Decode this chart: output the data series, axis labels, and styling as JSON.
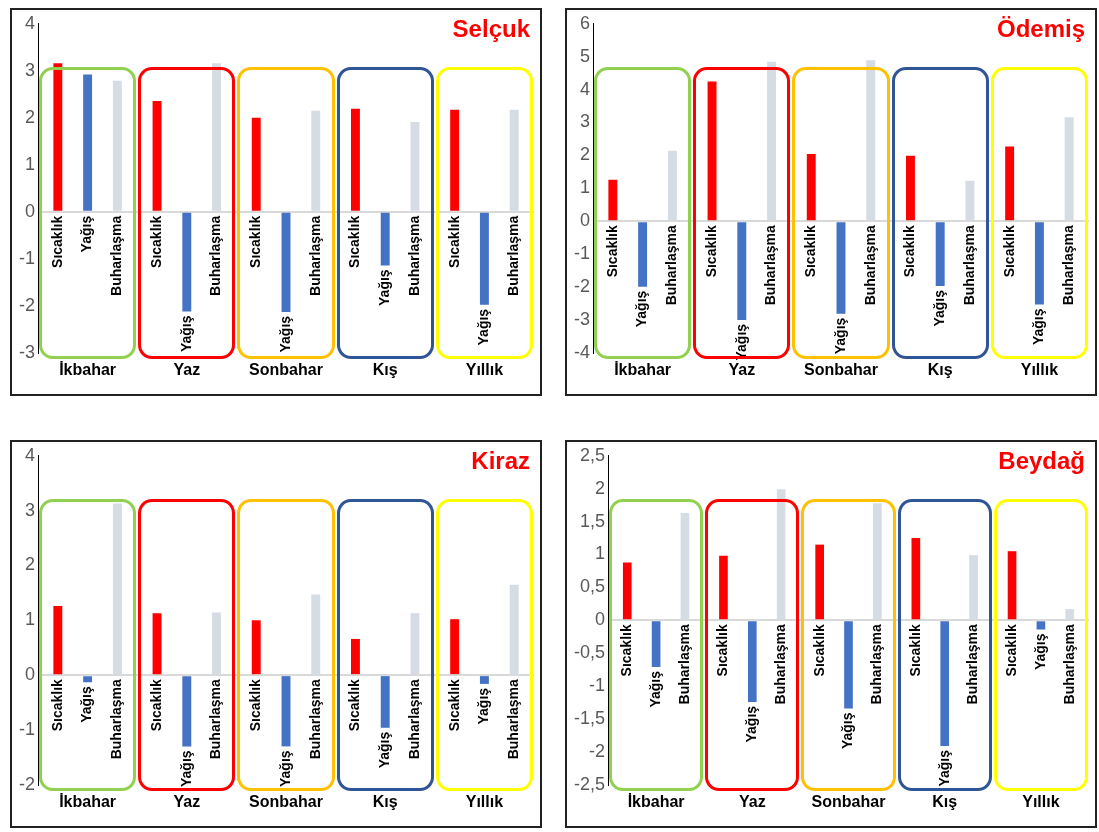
{
  "chart_data": [
    {
      "type": "bar",
      "title": "Selçuk",
      "categories": [
        "İkbahar",
        "Yaz",
        "Sonbahar",
        "Kış",
        "Yıllık"
      ],
      "series": [
        {
          "name": "Sıcaklık",
          "color": "#ff0000",
          "values": [
            3.16,
            2.36,
            2.0,
            2.19,
            2.17
          ]
        },
        {
          "name": "Yağış",
          "color": "#4472c4",
          "values": [
            2.92,
            -2.12,
            -2.13,
            -1.14,
            -1.98
          ]
        },
        {
          "name": "Buharlaşma",
          "color": "#d6dce4",
          "values": [
            2.79,
            3.16,
            2.15,
            1.91,
            2.17
          ]
        }
      ],
      "ylim": [
        -3,
        4
      ],
      "yticks": [
        -3,
        -2,
        -1,
        0,
        1,
        2,
        3,
        4
      ]
    },
    {
      "type": "bar",
      "title": "Ödemiş",
      "categories": [
        "İkbahar",
        "Yaz",
        "Sonbahar",
        "Kış",
        "Yıllık"
      ],
      "series": [
        {
          "name": "Sıcaklık",
          "color": "#ff0000",
          "values": [
            1.26,
            4.25,
            2.04,
            1.99,
            2.27
          ]
        },
        {
          "name": "Yağış",
          "color": "#4472c4",
          "values": [
            -1.99,
            -3.0,
            -2.81,
            -1.97,
            -2.53
          ]
        },
        {
          "name": "Buharlaşma",
          "color": "#d6dce4",
          "values": [
            2.14,
            4.85,
            4.89,
            1.23,
            3.16
          ]
        }
      ],
      "ylim": [
        -4,
        6
      ],
      "yticks": [
        -4,
        -3,
        -2,
        -1,
        0,
        1,
        2,
        3,
        4,
        5,
        6
      ]
    },
    {
      "type": "bar",
      "title": "Kiraz",
      "categories": [
        "İkbahar",
        "Yaz",
        "Sonbahar",
        "Kış",
        "Yıllık"
      ],
      "series": [
        {
          "name": "Sıcaklık",
          "color": "#ff0000",
          "values": [
            1.26,
            1.13,
            1.0,
            0.66,
            1.02
          ]
        },
        {
          "name": "Yağış",
          "color": "#4472c4",
          "values": [
            -0.13,
            -1.3,
            -1.3,
            -0.96,
            -0.16
          ]
        },
        {
          "name": "Buharlaşma",
          "color": "#d6dce4",
          "values": [
            3.13,
            1.14,
            1.47,
            1.13,
            1.65
          ]
        }
      ],
      "ylim": [
        -2,
        4
      ],
      "yticks": [
        -2,
        -1,
        0,
        1,
        2,
        3,
        4
      ]
    },
    {
      "type": "bar",
      "title": "Beydağ",
      "categories": [
        "İkbahar",
        "Yaz",
        "Sonbahar",
        "Kış",
        "Yıllık"
      ],
      "series": [
        {
          "name": "Sıcaklık",
          "color": "#ff0000",
          "values": [
            0.88,
            0.98,
            1.15,
            1.25,
            1.05
          ]
        },
        {
          "name": "Yağış",
          "color": "#4472c4",
          "values": [
            -0.71,
            -1.24,
            -1.34,
            -1.91,
            -0.14
          ]
        },
        {
          "name": "Buharlaşma",
          "color": "#d6dce4",
          "values": [
            1.63,
            1.99,
            1.78,
            0.99,
            0.17
          ]
        }
      ],
      "ylim": [
        -2.5,
        2.5
      ],
      "yticks": [
        {
          "value": -2.5,
          "label": "-2,5"
        },
        -2,
        {
          "value": -1.5,
          "label": "-1,5"
        },
        -1,
        {
          "value": -0.5,
          "label": "-0,5"
        },
        0,
        {
          "value": 0.5,
          "label": "0,5"
        },
        1,
        {
          "value": 1.5,
          "label": "1,5"
        },
        2,
        {
          "value": 2.5,
          "label": "2,5"
        }
      ]
    }
  ]
}
